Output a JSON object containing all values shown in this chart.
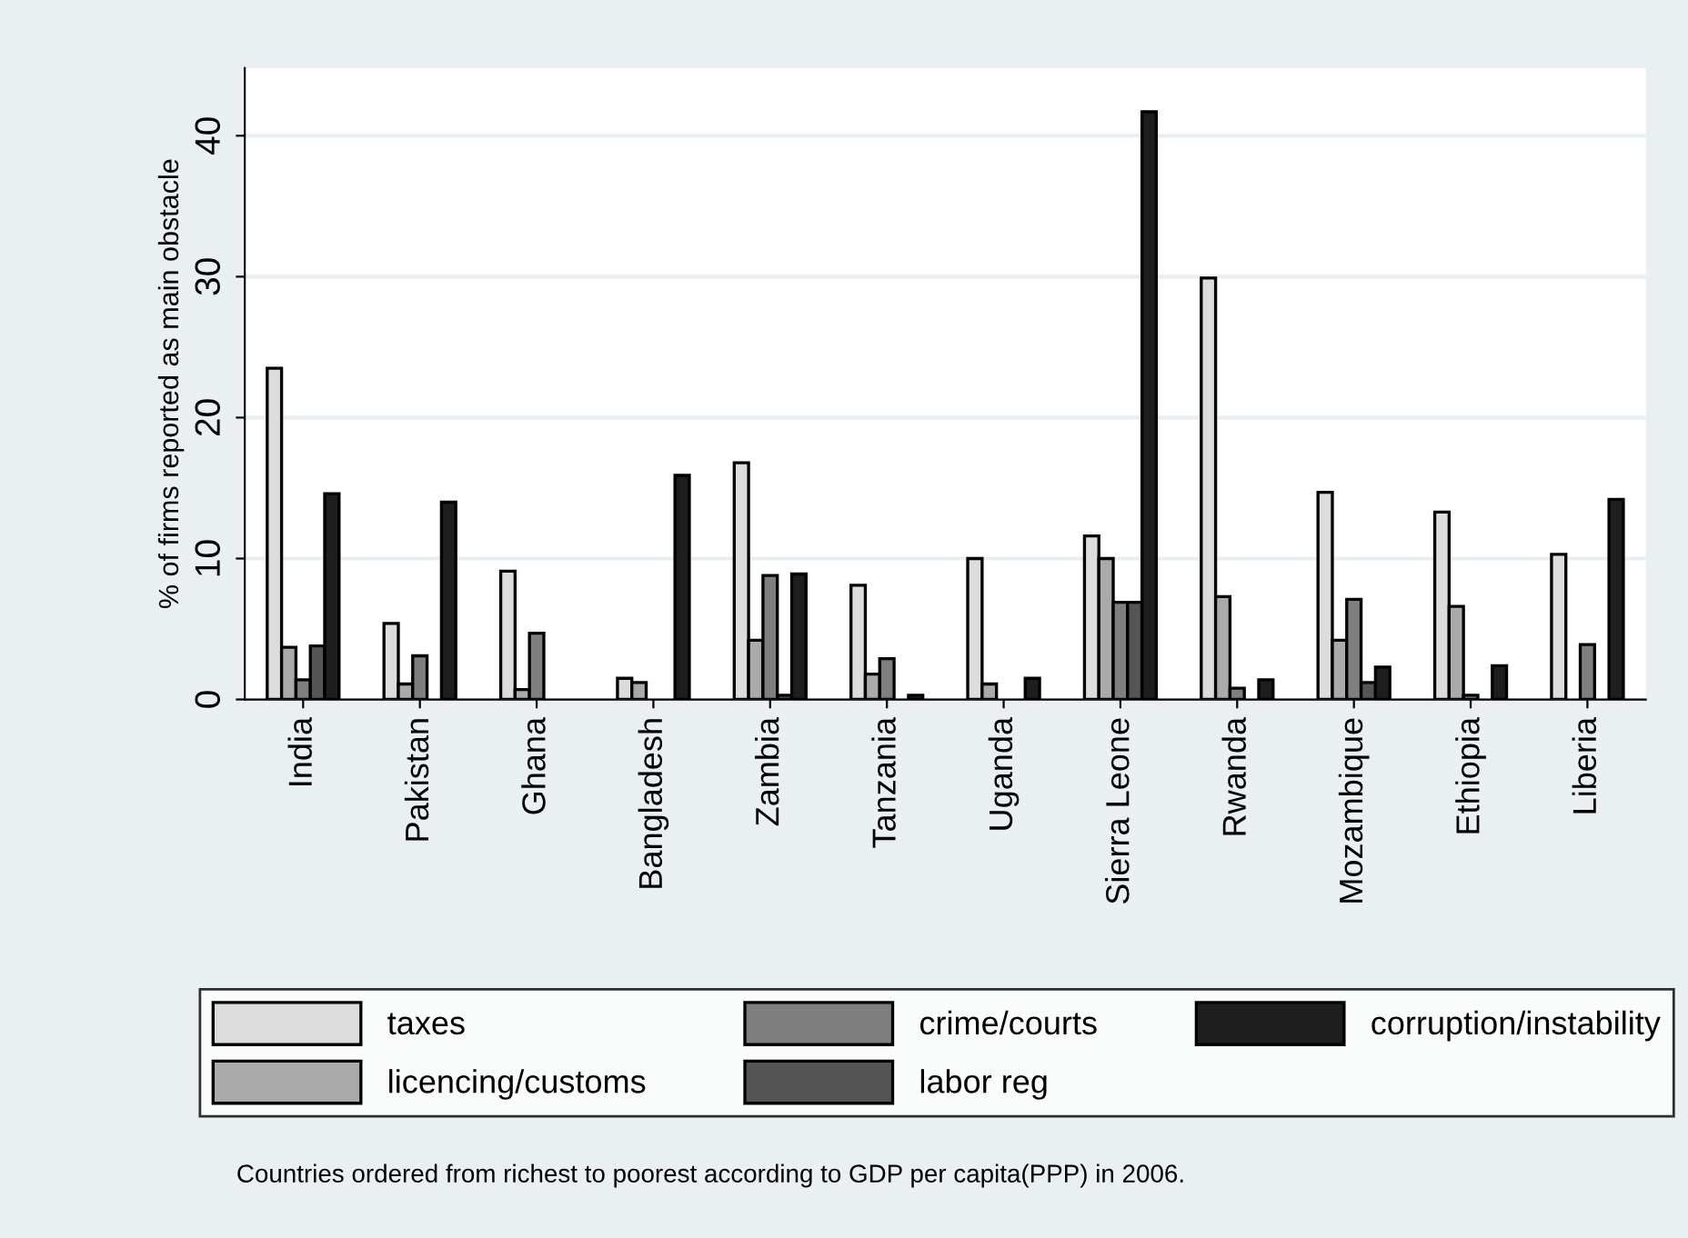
{
  "chart_data": {
    "type": "bar",
    "ylabel": "% of firms reported as main obstacle",
    "categories": [
      "India",
      "Pakistan",
      "Ghana",
      "Bangladesh",
      "Zambia",
      "Tanzania",
      "Uganda",
      "Sierra Leone",
      "Rwanda",
      "Mozambique",
      "Ethiopia",
      "Liberia"
    ],
    "series": [
      {
        "name": "taxes",
        "color": "#dcdcdc",
        "values": [
          23.5,
          5.4,
          9.1,
          1.5,
          16.8,
          8.1,
          10.0,
          11.6,
          29.9,
          14.7,
          13.3,
          10.3
        ]
      },
      {
        "name": "licencing/customs",
        "color": "#aaaaaa",
        "values": [
          3.7,
          1.1,
          0.7,
          1.2,
          4.2,
          1.8,
          1.1,
          10.0,
          7.3,
          4.2,
          6.6,
          null
        ]
      },
      {
        "name": "crime/courts",
        "color": "#7f7f7f",
        "values": [
          1.4,
          3.1,
          4.7,
          null,
          8.8,
          2.9,
          null,
          6.9,
          0.8,
          7.1,
          0.3,
          3.9
        ]
      },
      {
        "name": "labor reg",
        "color": "#555555",
        "values": [
          3.8,
          null,
          null,
          null,
          0.3,
          null,
          null,
          6.9,
          null,
          1.2,
          null,
          null
        ]
      },
      {
        "name": "corruption/instability",
        "color": "#1e1e1e",
        "values": [
          14.6,
          14.0,
          null,
          15.9,
          8.9,
          0.3,
          1.5,
          41.7,
          1.4,
          2.3,
          2.4,
          14.2
        ]
      }
    ],
    "ylim": [
      0,
      44.8
    ],
    "yticks": [
      0,
      10,
      20,
      30,
      40
    ],
    "grid": "y",
    "legend": "bottom",
    "annotations": [
      "Countries ordered from richest to poorest according to GDP per capita(PPP) in 2006."
    ]
  }
}
